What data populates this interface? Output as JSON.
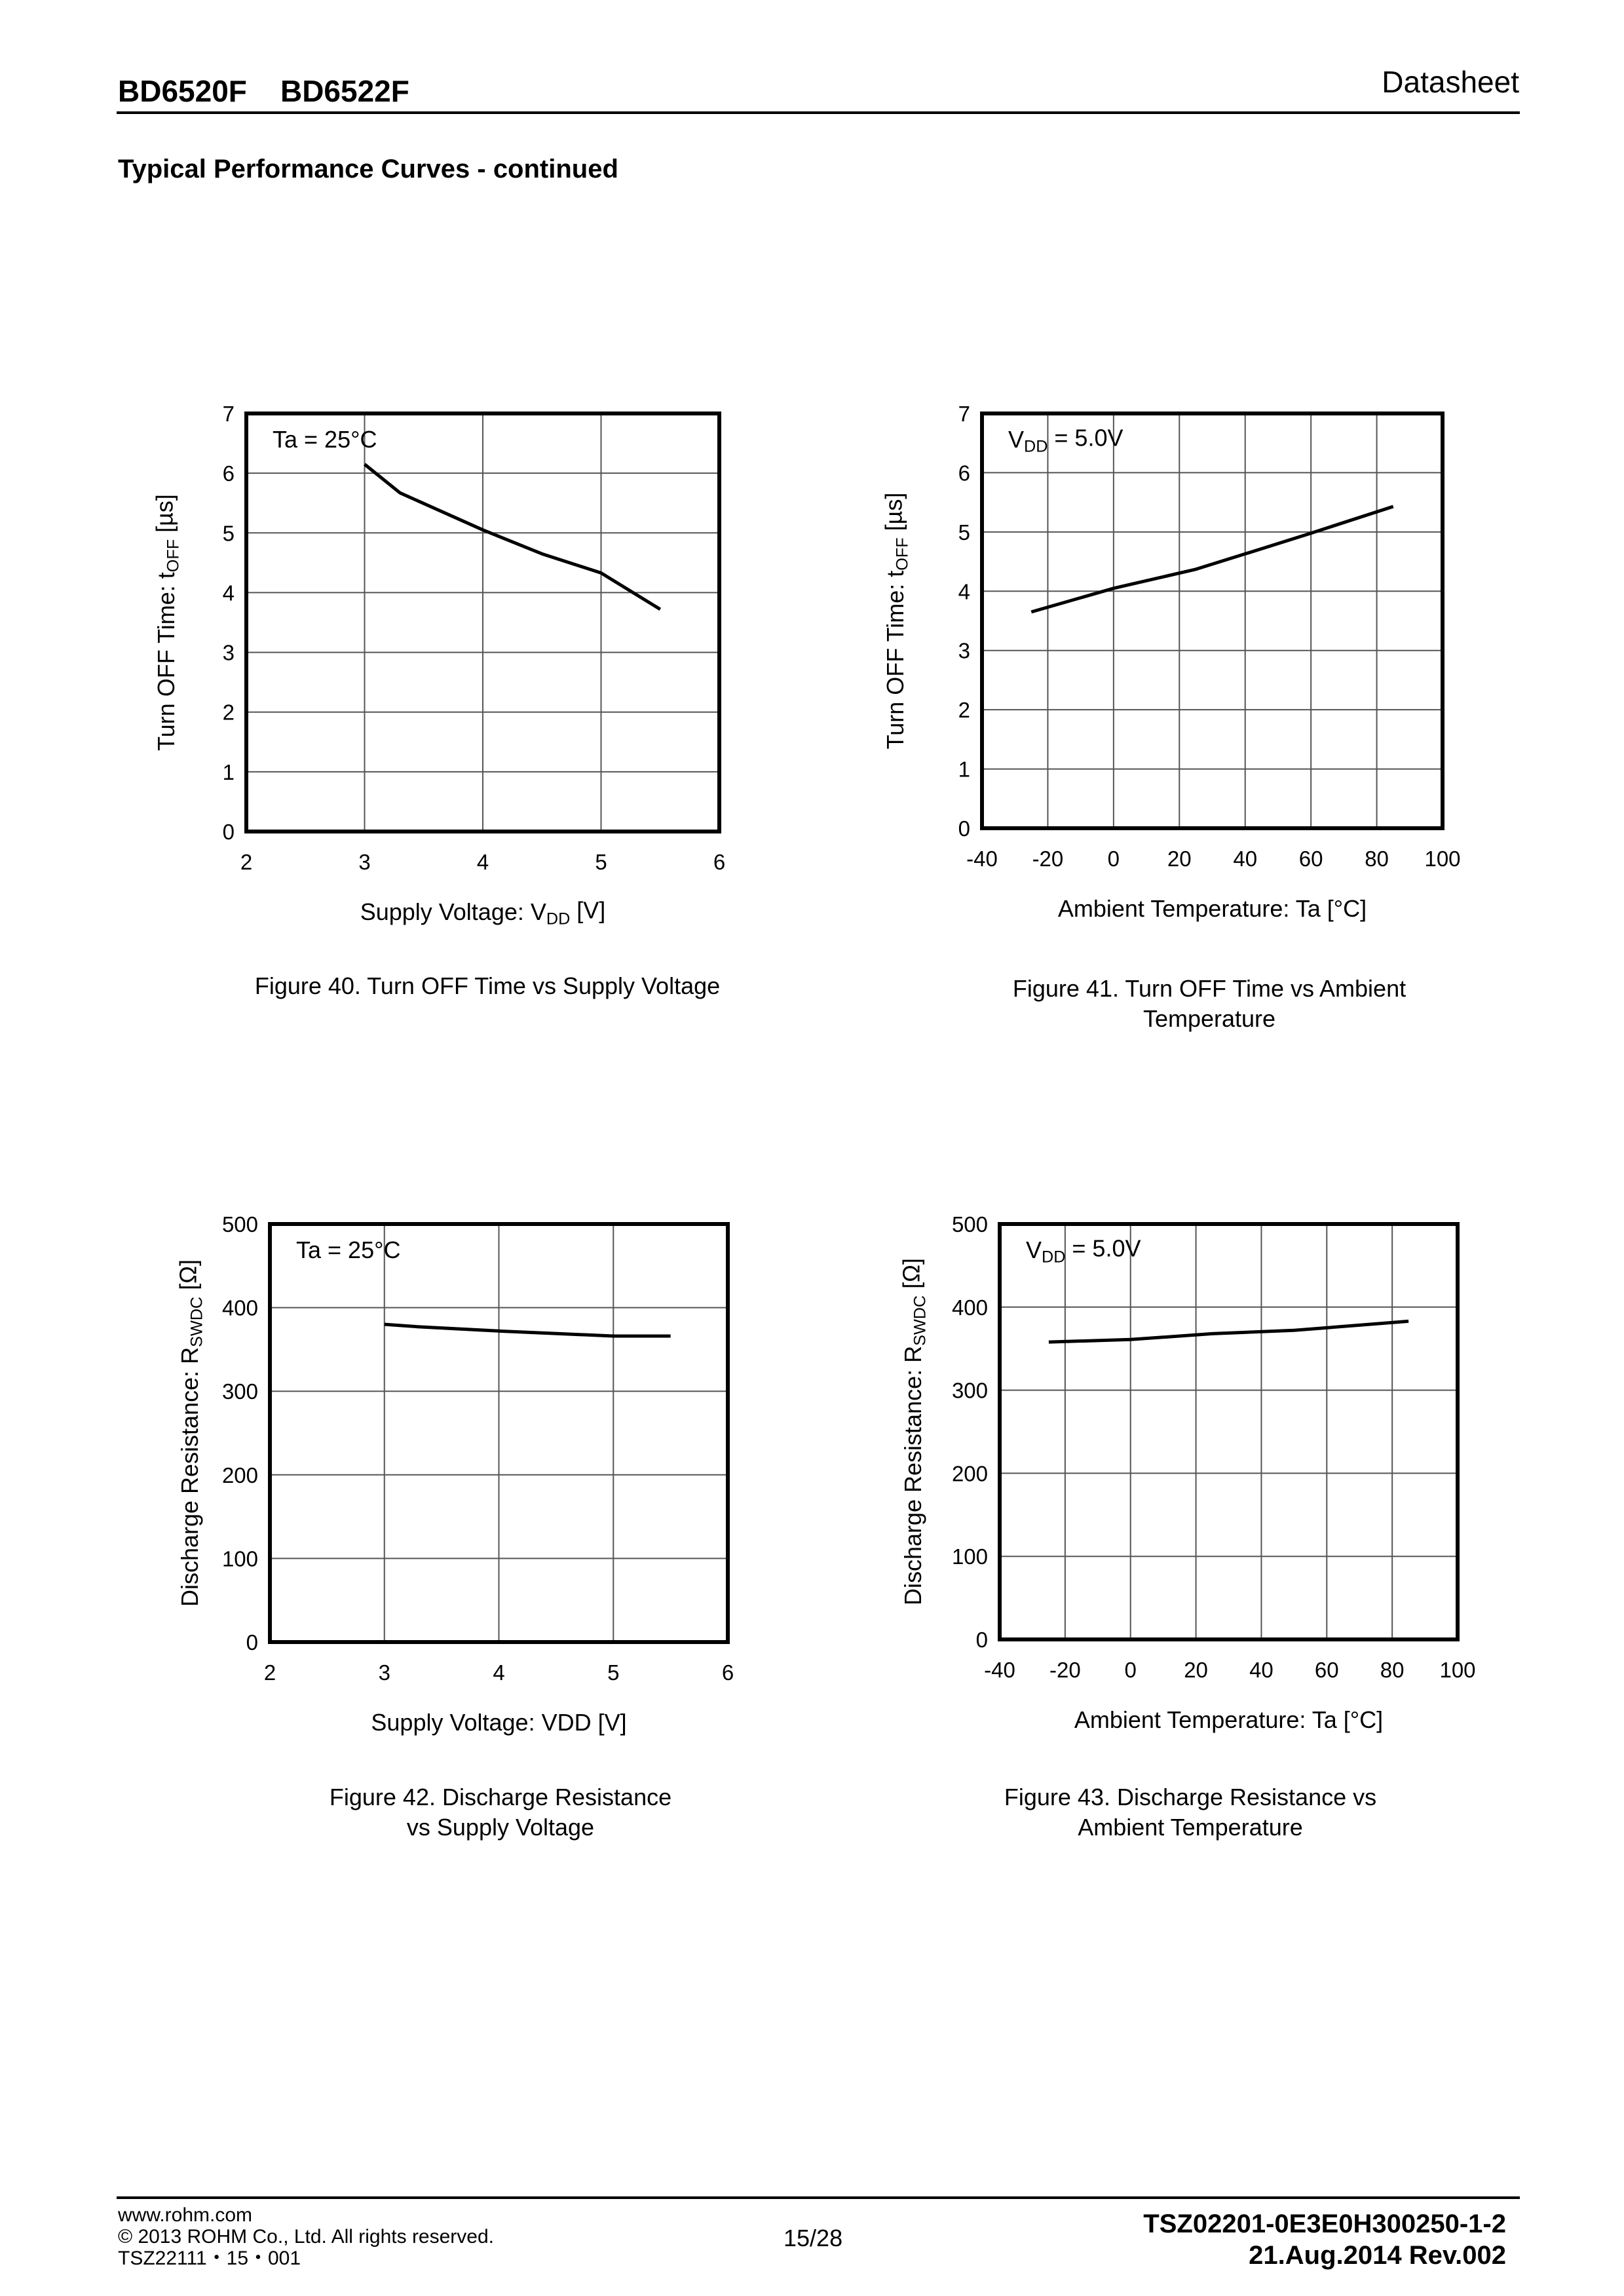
{
  "header": {
    "title": "BD6520F    BD6522F",
    "right": "Datasheet"
  },
  "section_title": "Typical Performance Curves - continued",
  "footer": {
    "url": "www.rohm.com",
    "copyright": "© 2013 ROHM Co., Ltd. All rights reserved.",
    "code": "TSZ22111・15・001",
    "page": "15/28",
    "doc_number": "TSZ02201-0E3E0H300250-1-2",
    "date_rev": "21.Aug.2014 Rev.002"
  },
  "chart_data": [
    {
      "type": "line",
      "caption": [
        "Figure 40. Turn OFF Time vs Supply Voltage"
      ],
      "annotation": [
        "Ta = 25°C",
        "",
        ""
      ],
      "xlabel": [
        "Supply Voltage: V",
        "DD",
        " [V]"
      ],
      "ylabel": [
        "Turn OFF Time: t",
        "OFF",
        " [µs]"
      ],
      "xlim": [
        2,
        6
      ],
      "ylim": [
        0,
        7
      ],
      "xticks": [
        2,
        3,
        4,
        5,
        6
      ],
      "yticks": [
        0,
        1,
        2,
        3,
        4,
        5,
        6,
        7
      ],
      "grid": true,
      "series": [
        {
          "name": "tOFF",
          "x": [
            3,
            3.3,
            4,
            4.5,
            5,
            5.5
          ],
          "y": [
            6.15,
            5.67,
            5.05,
            4.65,
            4.33,
            3.72
          ]
        }
      ]
    },
    {
      "type": "line",
      "caption": [
        "Figure 41. Turn OFF Time vs Ambient",
        "Temperature"
      ],
      "annotation": [
        "V",
        "DD",
        " = 5.0V"
      ],
      "xlabel": [
        "Ambient Temperature: Ta [°C]",
        "",
        ""
      ],
      "ylabel": [
        "Turn OFF Time: t",
        "OFF",
        " [µs]"
      ],
      "xlim": [
        -40,
        100
      ],
      "ylim": [
        0,
        7
      ],
      "xticks": [
        -40,
        -20,
        0,
        20,
        40,
        60,
        80,
        100
      ],
      "yticks": [
        0,
        1,
        2,
        3,
        4,
        5,
        6,
        7
      ],
      "grid": true,
      "series": [
        {
          "name": "tOFF",
          "x": [
            -25,
            0,
            25,
            40,
            60,
            85
          ],
          "y": [
            3.65,
            4.05,
            4.37,
            4.63,
            4.98,
            5.43
          ]
        }
      ]
    },
    {
      "type": "line",
      "caption": [
        "Figure 42. Discharge Resistance",
        "vs Supply Voltage"
      ],
      "annotation": [
        "Ta = 25°C",
        "",
        ""
      ],
      "xlabel": [
        "Supply Voltage: VDD [V]",
        "",
        ""
      ],
      "ylabel": [
        "Discharge Resistance: R",
        "SWDC",
        " [Ω]"
      ],
      "xlim": [
        2,
        6
      ],
      "ylim": [
        0,
        500
      ],
      "xticks": [
        2,
        3,
        4,
        5,
        6
      ],
      "yticks": [
        0,
        100,
        200,
        300,
        400,
        500
      ],
      "grid": true,
      "series": [
        {
          "name": "RSWDC",
          "x": [
            3,
            3.3,
            4,
            5,
            5.5
          ],
          "y": [
            380,
            377,
            372,
            366,
            366
          ]
        }
      ]
    },
    {
      "type": "line",
      "caption": [
        "Figure 43. Discharge Resistance vs",
        "Ambient Temperature"
      ],
      "annotation": [
        "V",
        "DD",
        " = 5.0V"
      ],
      "xlabel": [
        "Ambient Temperature: Ta [°C]",
        "",
        ""
      ],
      "ylabel": [
        "Discharge Resistance: R",
        "SWDC",
        " [Ω]"
      ],
      "xlim": [
        -40,
        100
      ],
      "ylim": [
        0,
        500
      ],
      "xticks": [
        -40,
        -20,
        0,
        20,
        40,
        60,
        80,
        100
      ],
      "yticks": [
        0,
        100,
        200,
        300,
        400,
        500
      ],
      "grid": true,
      "series": [
        {
          "name": "RSWDC",
          "x": [
            -25,
            0,
            25,
            50,
            85
          ],
          "y": [
            358,
            361,
            368,
            372,
            383
          ]
        }
      ]
    }
  ]
}
